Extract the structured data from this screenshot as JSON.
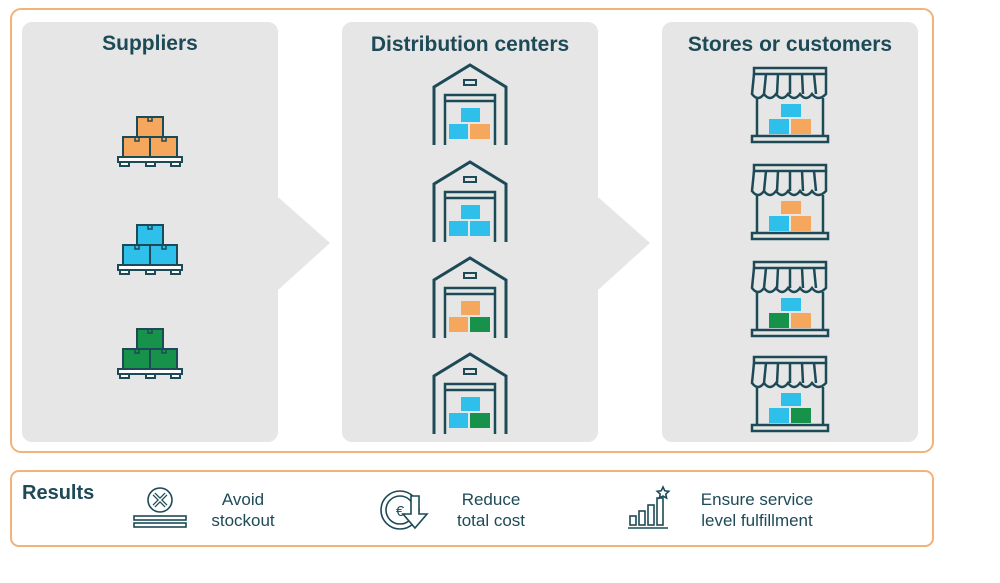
{
  "colors": {
    "orange": "#f5a75e",
    "blue": "#2ebfea",
    "green": "#16924a",
    "dark": "#1d4a57",
    "panel": "#e6e6e6",
    "frame": "#f2b27a"
  },
  "columns": {
    "suppliers": {
      "title": "Suppliers",
      "items": [
        "orange",
        "blue",
        "green"
      ]
    },
    "distribution": {
      "title": "Distribution centers",
      "items": [
        [
          "blue",
          "blue",
          "orange"
        ],
        [
          "blue",
          "blue",
          "blue"
        ],
        [
          "orange",
          "orange",
          "green"
        ],
        [
          "blue",
          "blue",
          "green"
        ]
      ]
    },
    "stores": {
      "title": "Stores or customers",
      "items": [
        [
          "blue",
          "blue",
          "orange"
        ],
        [
          "orange",
          "blue",
          "orange"
        ],
        [
          "blue",
          "green",
          "orange"
        ],
        [
          "blue",
          "blue",
          "green"
        ]
      ]
    }
  },
  "results": {
    "title": "Results",
    "items": [
      {
        "icon": "stockout-pallet-icon",
        "line1": "Avoid",
        "line2": "stockout"
      },
      {
        "icon": "euro-down-icon",
        "line1": "Reduce",
        "line2": "total cost"
      },
      {
        "icon": "bar-chart-star-icon",
        "line1": "Ensure service",
        "line2": "level fulfillment"
      }
    ]
  }
}
